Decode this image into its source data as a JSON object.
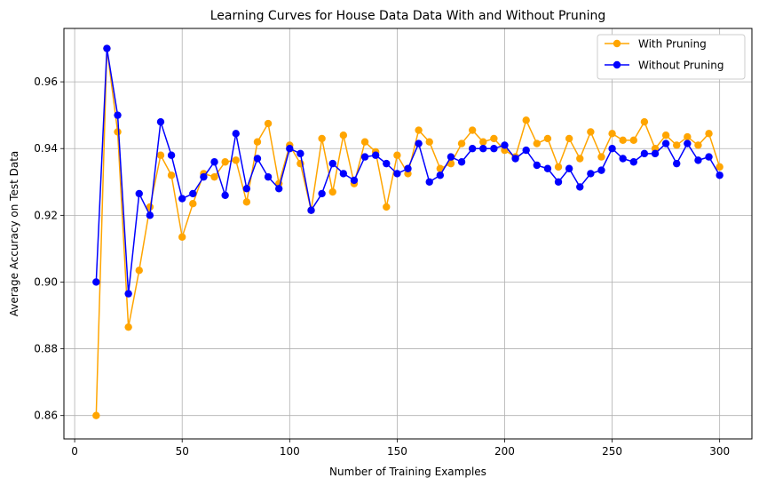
{
  "chart_data": {
    "type": "line",
    "title": "Learning Curves for House Data Data With and Without Pruning",
    "xlabel": "Number of Training Examples",
    "ylabel": "Average Accuracy on Test Data",
    "xlim": [
      -5,
      315
    ],
    "ylim": [
      0.853,
      0.976
    ],
    "xticks": [
      0,
      50,
      100,
      150,
      200,
      250,
      300
    ],
    "yticks": [
      0.86,
      0.88,
      0.9,
      0.92,
      0.94,
      0.96
    ],
    "ytick_labels": [
      "0.86",
      "0.88",
      "0.90",
      "0.92",
      "0.94",
      "0.96"
    ],
    "grid": true,
    "legend_position": "top-right",
    "x": [
      10,
      15,
      20,
      25,
      30,
      35,
      40,
      45,
      50,
      55,
      60,
      65,
      70,
      75,
      80,
      85,
      90,
      95,
      100,
      105,
      110,
      115,
      120,
      125,
      130,
      135,
      140,
      145,
      150,
      155,
      160,
      165,
      170,
      175,
      180,
      185,
      190,
      195,
      200,
      205,
      210,
      215,
      220,
      225,
      230,
      235,
      240,
      245,
      250,
      255,
      260,
      265,
      270,
      275,
      280,
      285,
      290,
      295,
      300
    ],
    "series": [
      {
        "name": "With Pruning",
        "color": "#ffa500",
        "values": [
          0.86,
          0.97,
          0.945,
          0.8865,
          0.9035,
          0.9225,
          0.938,
          0.932,
          0.9135,
          0.9235,
          0.9325,
          0.9315,
          0.936,
          0.9365,
          0.924,
          0.942,
          0.9475,
          0.9295,
          0.941,
          0.9355,
          0.9215,
          0.943,
          0.927,
          0.944,
          0.9295,
          0.942,
          0.939,
          0.9225,
          0.938,
          0.9325,
          0.9455,
          0.942,
          0.934,
          0.9355,
          0.9415,
          0.9455,
          0.942,
          0.943,
          0.9395,
          0.9375,
          0.9485,
          0.9415,
          0.943,
          0.9345,
          0.943,
          0.937,
          0.945,
          0.9375,
          0.9445,
          0.9425,
          0.9425,
          0.948,
          0.94,
          0.944,
          0.941,
          0.9435,
          0.941,
          0.9445,
          0.9345
        ]
      },
      {
        "name": "Without Pruning",
        "color": "#0000ff",
        "values": [
          0.9,
          0.97,
          0.95,
          0.8965,
          0.9265,
          0.92,
          0.948,
          0.938,
          0.925,
          0.9265,
          0.9315,
          0.936,
          0.926,
          0.9445,
          0.928,
          0.937,
          0.9315,
          0.928,
          0.94,
          0.9385,
          0.9215,
          0.9265,
          0.9355,
          0.9325,
          0.9305,
          0.9375,
          0.938,
          0.9355,
          0.9325,
          0.934,
          0.9415,
          0.93,
          0.932,
          0.9375,
          0.936,
          0.94,
          0.94,
          0.94,
          0.941,
          0.937,
          0.9395,
          0.935,
          0.934,
          0.93,
          0.934,
          0.9285,
          0.9325,
          0.9335,
          0.94,
          0.937,
          0.936,
          0.9385,
          0.9385,
          0.9415,
          0.9355,
          0.9415,
          0.9365,
          0.9375,
          0.932
        ]
      }
    ]
  }
}
